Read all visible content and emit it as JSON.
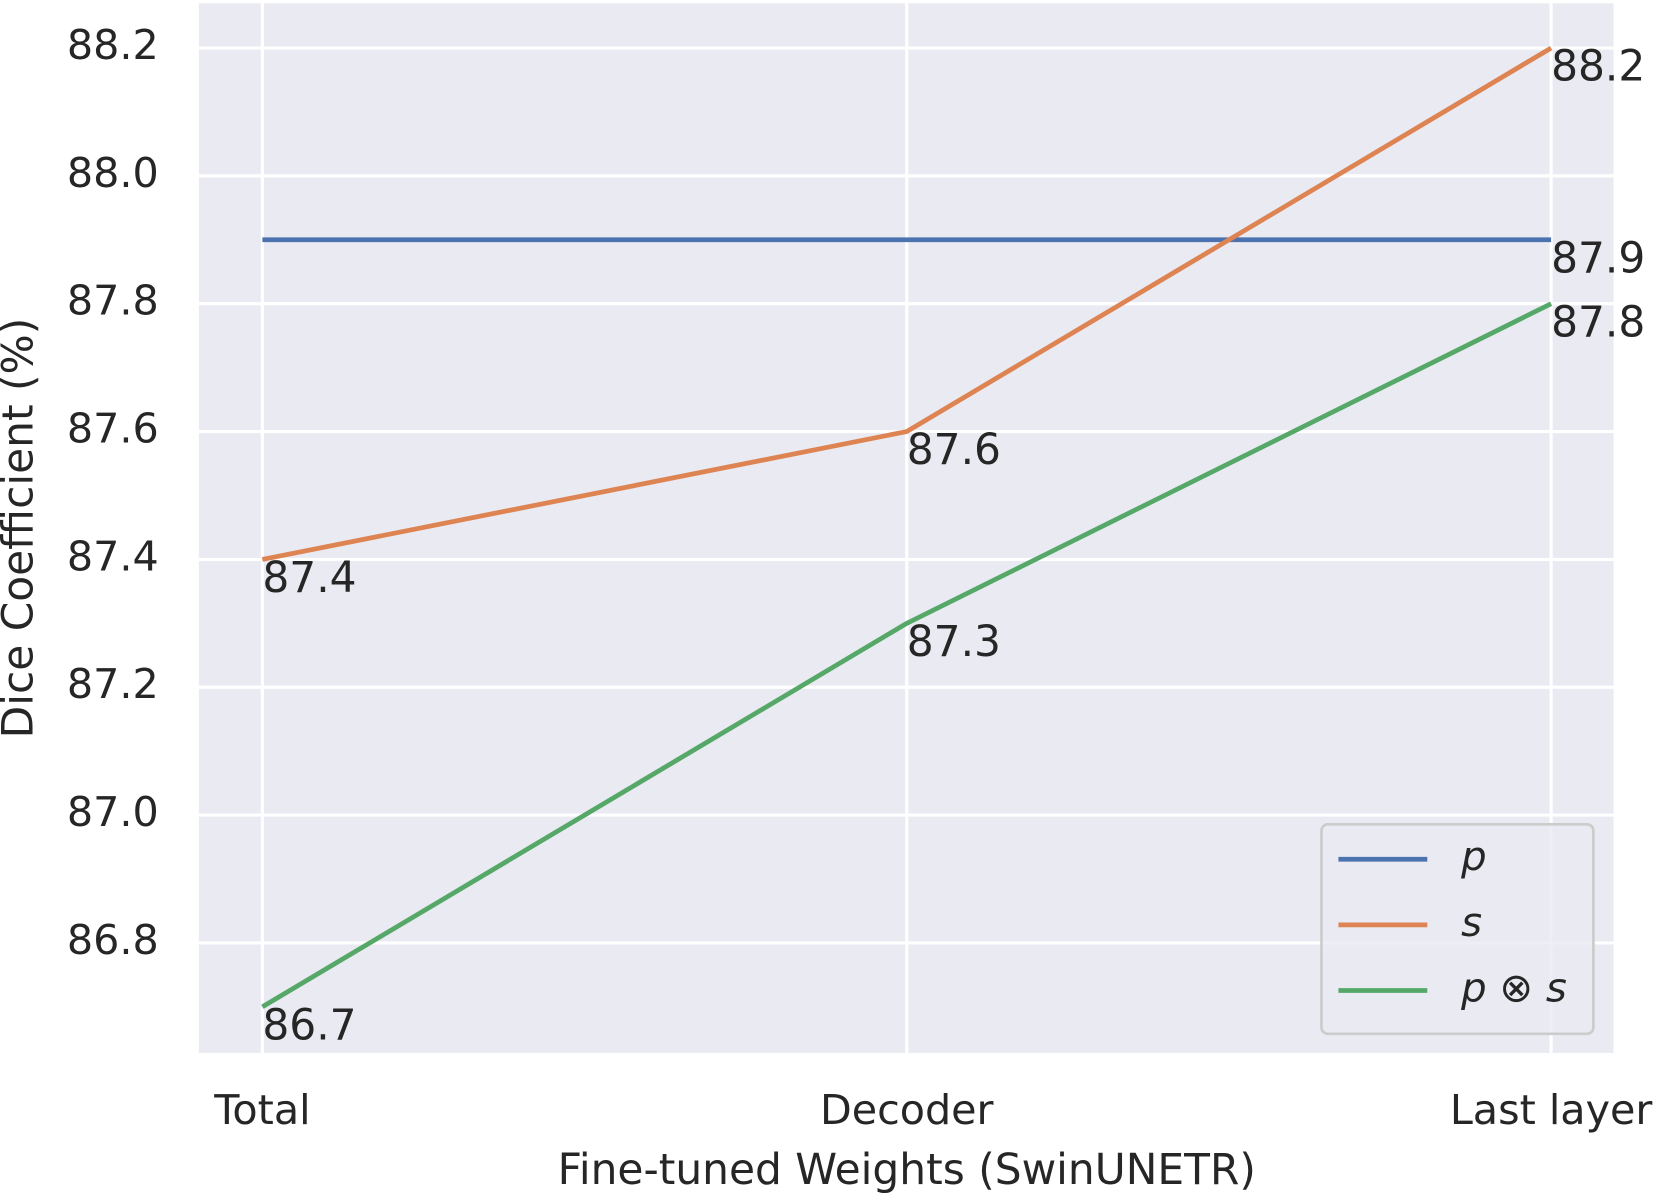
{
  "chart_data": {
    "type": "line",
    "x_label": "Fine-tuned Weights (SwinUNETR)",
    "y_label": "Dice Coefficient (%)",
    "categories": [
      "Total",
      "Decoder",
      "Last layer"
    ],
    "series": [
      {
        "name": "p",
        "color": "#4c72b0",
        "values": [
          87.9,
          87.9,
          87.9
        ],
        "value_labels": [
          null,
          null,
          "87.9"
        ]
      },
      {
        "name": "s",
        "color": "#dd8452",
        "values": [
          87.4,
          87.6,
          88.2
        ]
      },
      {
        "name": "p ⊗ s",
        "color": "#55a868",
        "values": [
          86.7,
          87.3,
          87.8
        ]
      }
    ],
    "ylim": [
      86.628,
      88.27
    ],
    "yticks": [
      {
        "value": 86.8,
        "label": "86.8"
      },
      {
        "value": 87.0,
        "label": "87.0"
      },
      {
        "value": 87.2,
        "label": "87.2"
      },
      {
        "value": 87.4,
        "label": "87.4"
      },
      {
        "value": 87.6,
        "label": "87.6"
      },
      {
        "value": 87.8,
        "label": "87.8"
      },
      {
        "value": 88.0,
        "label": "88.0"
      },
      {
        "value": 88.2,
        "label": "88.2"
      }
    ],
    "grid": true,
    "legend": "lower right"
  }
}
